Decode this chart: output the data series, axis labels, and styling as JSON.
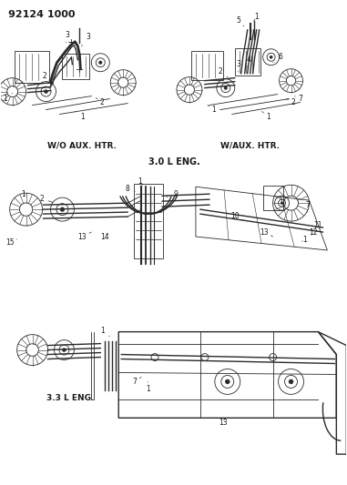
{
  "title_code": "92124 1000",
  "background_color": "#ffffff",
  "text_color": "#1a1a1a",
  "figsize": [
    3.81,
    5.33
  ],
  "dpi": 100,
  "labels": {
    "wo_aux": "W/O AUX. HTR.",
    "w_aux": "W/AUX. HTR.",
    "eng_30": "3.0 L ENG.",
    "eng_33": "3.3 L ENG."
  },
  "line_color": "#2a2a2a",
  "light_color": "#555555"
}
